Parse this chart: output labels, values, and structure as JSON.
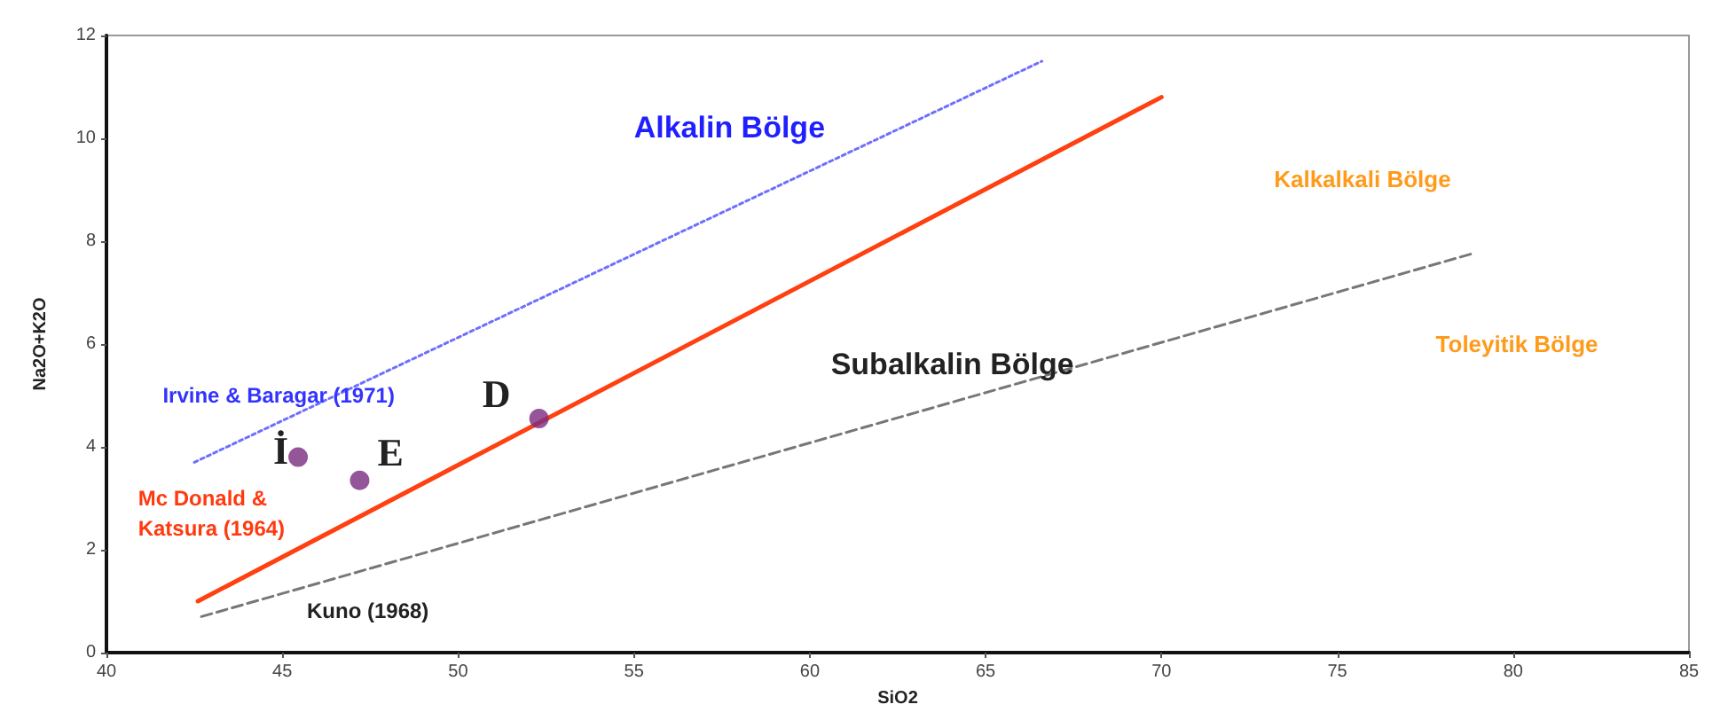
{
  "chart_data": {
    "type": "line",
    "xlabel": "SiO2",
    "ylabel": "Na2O+K2O",
    "xlim": [
      40,
      85
    ],
    "ylim": [
      0,
      12
    ],
    "xticks": [
      40,
      45,
      50,
      55,
      60,
      65,
      70,
      75,
      80,
      85
    ],
    "yticks": [
      0,
      2,
      4,
      6,
      8,
      10,
      12
    ],
    "grid": false,
    "legend": false,
    "series": [
      {
        "name": "Irvine & Baragar (1971)",
        "color": "#6f6fff",
        "line_style": "dotted",
        "marker": "none",
        "x": [
          42.5,
          66.6
        ],
        "values": [
          3.7,
          11.5
        ]
      },
      {
        "name": "Mc Donald & Katsura (1964)",
        "color": "#ff4010",
        "line_style": "solid",
        "marker": "none",
        "x": [
          42.6,
          70.0
        ],
        "values": [
          1.0,
          10.8
        ]
      },
      {
        "name": "Kuno (1968)",
        "color": "#777777",
        "line_style": "dashed",
        "marker": "none",
        "x": [
          42.7,
          78.8
        ],
        "values": [
          0.7,
          7.75
        ]
      },
      {
        "type": "scatter",
        "color": "#7b2a7f",
        "marker": "circle",
        "x": [
          45.45,
          47.2,
          52.3
        ],
        "values": [
          3.8,
          3.35,
          4.55
        ]
      }
    ],
    "annotations": [
      "Alkalin Bölge",
      "Kalkalkali Bölge",
      "Subalkalin Bölge",
      "Toleyitik Bölge",
      {
        "text": "İ",
        "x": 45.45,
        "y": 3.8
      },
      {
        "text": "E",
        "x": 47.2,
        "y": 3.35
      },
      {
        "text": "D",
        "x": 52.3,
        "y": 4.55
      }
    ]
  }
}
